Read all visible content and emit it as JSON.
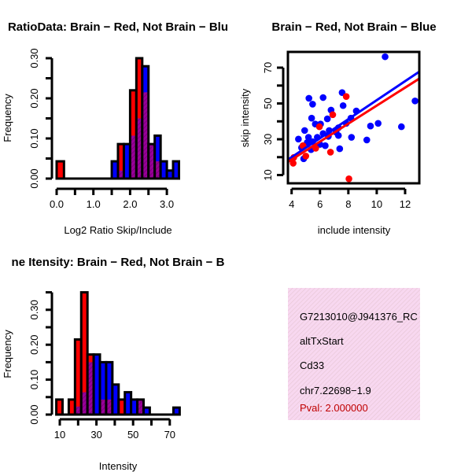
{
  "chart_data": [
    {
      "type": "bar",
      "title": "RatioData: Brain − Red, Not Brain − Blu",
      "xlabel": "Log2 Ratio Skip/Include",
      "ylabel": "Frequency",
      "xlim": [
        0,
        3.35
      ],
      "ylim": [
        0,
        0.3
      ],
      "xticks": [
        "0.0",
        "1.0",
        "2.0",
        "3.0"
      ],
      "xtick_values": [
        0,
        1,
        2,
        3
      ],
      "yticks": [
        "0.00",
        "0.10",
        "0.20",
        "0.30"
      ],
      "ytick_values": [
        0,
        0.1,
        0.2,
        0.3
      ],
      "minor_ytick_step": 0.05,
      "xtick_step": 0.5,
      "series": [
        {
          "name": "Brain",
          "color": "#ff0000"
        },
        {
          "name": "Not Brain",
          "color": "#0000ff"
        }
      ],
      "overlap_color": "#990099",
      "bins": [
        {
          "x0": 0.0,
          "x1": 0.2,
          "red": 0.043,
          "blue": 0
        },
        {
          "x0": 1.5,
          "x1": 1.67,
          "red": 0,
          "blue": 0.043
        },
        {
          "x0": 1.67,
          "x1": 1.83,
          "red": 0.086,
          "blue": 0.02
        },
        {
          "x0": 1.83,
          "x1": 2.0,
          "red": 0,
          "blue": 0.086
        },
        {
          "x0": 2.0,
          "x1": 2.17,
          "red": 0.22,
          "blue": 0.107
        },
        {
          "x0": 2.17,
          "x1": 2.33,
          "red": 0.3,
          "blue": 0.15
        },
        {
          "x0": 2.33,
          "x1": 2.5,
          "red": 0.215,
          "blue": 0.28
        },
        {
          "x0": 2.5,
          "x1": 2.67,
          "red": 0.086,
          "blue": 0.086
        },
        {
          "x0": 2.67,
          "x1": 2.83,
          "red": 0.043,
          "blue": 0.107
        },
        {
          "x0": 2.83,
          "x1": 3.0,
          "red": 0,
          "blue": 0.043
        },
        {
          "x0": 3.0,
          "x1": 3.17,
          "red": 0,
          "blue": 0.02
        },
        {
          "x0": 3.17,
          "x1": 3.33,
          "red": 0,
          "blue": 0.043
        }
      ]
    },
    {
      "type": "scatter",
      "title": "Brain − Red, Not Brain − Blue",
      "xlabel": "include intensity",
      "ylabel": "skip intensity",
      "xlim": [
        3.74,
        13.0
      ],
      "ylim": [
        5.4,
        78.8
      ],
      "xticks": [
        "4",
        "6",
        "8",
        "10",
        "12"
      ],
      "xtick_values": [
        4,
        6,
        8,
        10,
        12
      ],
      "yticks": [
        "10",
        "30",
        "50",
        "70"
      ],
      "ytick_values": [
        10,
        30,
        50,
        70
      ],
      "minor_ytick_values": [
        20,
        40,
        60
      ],
      "series": [
        {
          "name": "Brain",
          "color": "#ff0000",
          "points": [
            [
              4.11,
              16.6
            ],
            [
              4.15,
              19.8
            ],
            [
              8.04,
              7.9
            ],
            [
              6.74,
              22.8
            ],
            [
              7.85,
              53.9
            ],
            [
              6.9,
              43.7
            ],
            [
              5.96,
              37.0
            ],
            [
              4.8,
              26.4
            ],
            [
              5.7,
              25.0
            ],
            [
              5.0,
              20.6
            ]
          ],
          "fit": {
            "slope": 5.03,
            "intercept": -1.5
          }
        },
        {
          "name": "Not Brain",
          "color": "#0000ff",
          "points": [
            [
              10.59,
              76.1
            ],
            [
              12.7,
              51.4
            ],
            [
              11.74,
              37.0
            ],
            [
              10.1,
              38.9
            ],
            [
              9.56,
              37.4
            ],
            [
              9.3,
              29.6
            ],
            [
              8.22,
              31.1
            ],
            [
              8.56,
              45.8
            ],
            [
              7.63,
              48.8
            ],
            [
              7.56,
              56.1
            ],
            [
              7.39,
              24.7
            ],
            [
              6.22,
              53.3
            ],
            [
              5.22,
              52.9
            ],
            [
              5.48,
              49.6
            ],
            [
              6.78,
              46.3
            ],
            [
              5.41,
              41.8
            ],
            [
              6.52,
              41.4
            ],
            [
              5.67,
              38.5
            ],
            [
              6.04,
              38.5
            ],
            [
              4.92,
              34.9
            ],
            [
              4.48,
              30.1
            ],
            [
              6.65,
              34.9
            ],
            [
              8.18,
              41.8
            ],
            [
              7.85,
              38.9
            ],
            [
              7.3,
              36.4
            ],
            [
              7.13,
              34.0
            ],
            [
              7.3,
              32.1
            ],
            [
              6.59,
              31.6
            ],
            [
              6.22,
              33.2
            ],
            [
              5.81,
              31.1
            ],
            [
              5.48,
              28.6
            ],
            [
              5.1,
              28.2
            ],
            [
              4.7,
              25.3
            ],
            [
              4.85,
              19.1
            ],
            [
              6.37,
              26.4
            ],
            [
              5.37,
              24.2
            ],
            [
              6.0,
              27.1
            ],
            [
              5.19,
              31.1
            ]
          ],
          "fit": {
            "slope": 5.31,
            "intercept": -1.26
          }
        }
      ]
    },
    {
      "type": "bar",
      "title": "ne Itensity: Brain − Red, Not Brain − B",
      "xlabel": "Intensity",
      "ylabel": "Frequency",
      "xlim": [
        8.1,
        76
      ],
      "ylim": [
        0,
        0.35
      ],
      "xticks": [
        "10",
        "30",
        "50",
        "70"
      ],
      "xtick_values": [
        10,
        30,
        50,
        70
      ],
      "xtick_step": 10,
      "yticks": [
        "0.00",
        "0.10",
        "0.20",
        "0.30"
      ],
      "ytick_values": [
        0,
        0.1,
        0.2,
        0.3
      ],
      "minor_ytick_step": 0.05,
      "series": [
        {
          "name": "Brain",
          "color": "#ff0000"
        },
        {
          "name": "Not Brain",
          "color": "#0000ff"
        }
      ],
      "overlap_color": "#990099",
      "bins": [
        {
          "x0": 8.1,
          "x1": 11.5,
          "red": 0.043,
          "blue": 0
        },
        {
          "x0": 14.9,
          "x1": 18.3,
          "red": 0.043,
          "blue": 0
        },
        {
          "x0": 18.3,
          "x1": 21.7,
          "red": 0.215,
          "blue": 0.023
        },
        {
          "x0": 21.7,
          "x1": 25.1,
          "red": 0.35,
          "blue": 0.064
        },
        {
          "x0": 25.1,
          "x1": 28.5,
          "red": 0.172,
          "blue": 0.15
        },
        {
          "x0": 28.5,
          "x1": 31.9,
          "red": 0,
          "blue": 0.172
        },
        {
          "x0": 31.9,
          "x1": 35.3,
          "red": 0.043,
          "blue": 0.15
        },
        {
          "x0": 35.3,
          "x1": 38.7,
          "red": 0.043,
          "blue": 0.15
        },
        {
          "x0": 38.7,
          "x1": 42.1,
          "red": 0,
          "blue": 0.086
        },
        {
          "x0": 42.1,
          "x1": 45.5,
          "red": 0.043,
          "blue": 0
        },
        {
          "x0": 45.5,
          "x1": 48.9,
          "red": 0,
          "blue": 0.064
        },
        {
          "x0": 48.9,
          "x1": 52.3,
          "red": 0,
          "blue": 0.043
        },
        {
          "x0": 52.3,
          "x1": 55.7,
          "red": 0.043,
          "blue": 0.043
        },
        {
          "x0": 55.7,
          "x1": 59.1,
          "red": 0,
          "blue": 0.02
        },
        {
          "x0": 72.0,
          "x1": 75.4,
          "red": 0,
          "blue": 0.02
        }
      ]
    }
  ],
  "info": {
    "id": "G7213010@J941376_RC",
    "event_type": "altTxStart",
    "gene": "Cd33",
    "location": "chr7.22698−1.9",
    "pval": "Pval: 2.000000",
    "pval_color": "#c00000",
    "background_color": "#f8d8f0"
  }
}
